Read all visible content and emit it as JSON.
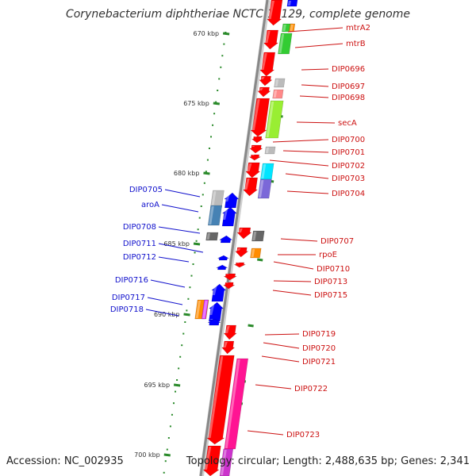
{
  "title": "Corynebacterium diphtheriae NCTC 13129, complete genome",
  "footer": {
    "accession": "Accession: NC_002935",
    "topology": "Topology: circular; Length: 2,488,635 bp; Genes: 2,341"
  },
  "colors": {
    "backbone": "#888888",
    "tick": "#2a8a2a",
    "right_label": "#cc1111",
    "left_label": "#1010cc"
  },
  "kbp_ticks": [
    "670 kbp",
    "675 kbp",
    "680 kbp",
    "685 kbp",
    "690 kbp",
    "695 kbp",
    "700 kbp"
  ],
  "right_genes": [
    {
      "name": "mtrA2",
      "color": "#ff0000"
    },
    {
      "name": "mtrB",
      "color": "#33cc33"
    },
    {
      "name": "DIP0696",
      "color": "#ff0000"
    },
    {
      "name": "DIP0697",
      "color": "#bbbbbb"
    },
    {
      "name": "DIP0698",
      "color": "#ff8888"
    },
    {
      "name": "secA",
      "color": "#99ee33"
    },
    {
      "name": "DIP0700",
      "color": "#ff0000"
    },
    {
      "name": "DIP0701",
      "color": "#bbbbbb"
    },
    {
      "name": "DIP0702",
      "color": "#ff0000"
    },
    {
      "name": "DIP0703",
      "color": "#00e5ff"
    },
    {
      "name": "DIP0704",
      "color": "#7b68d8"
    },
    {
      "name": "DIP0707",
      "color": "#666666"
    },
    {
      "name": "rpoE",
      "color": "#ff8c00"
    },
    {
      "name": "DIP0710",
      "color": "#ff0000"
    },
    {
      "name": "DIP0713",
      "color": "#ff0000"
    },
    {
      "name": "DIP0715",
      "color": "#ff0000"
    },
    {
      "name": "DIP0719",
      "color": "#ff0000"
    },
    {
      "name": "DIP0720",
      "color": "#ff0000"
    },
    {
      "name": "DIP0721",
      "color": "#ff0000"
    },
    {
      "name": "DIP0722",
      "color": "#ff1493"
    },
    {
      "name": "DIP0723",
      "color": "#ff1493"
    }
  ],
  "left_genes": [
    {
      "name": "DIP0705",
      "color": "#bbbbbb"
    },
    {
      "name": "aroA",
      "color": "#4682b4"
    },
    {
      "name": "DIP0708",
      "color": "#666666"
    },
    {
      "name": "DIP0711",
      "color": "#0000ff"
    },
    {
      "name": "DIP0712",
      "color": "#0000ff"
    },
    {
      "name": "DIP0716",
      "color": "#0000ff"
    },
    {
      "name": "DIP0717",
      "color": "#ff8c00"
    },
    {
      "name": "DIP0718",
      "color": "#0000ff"
    }
  ]
}
